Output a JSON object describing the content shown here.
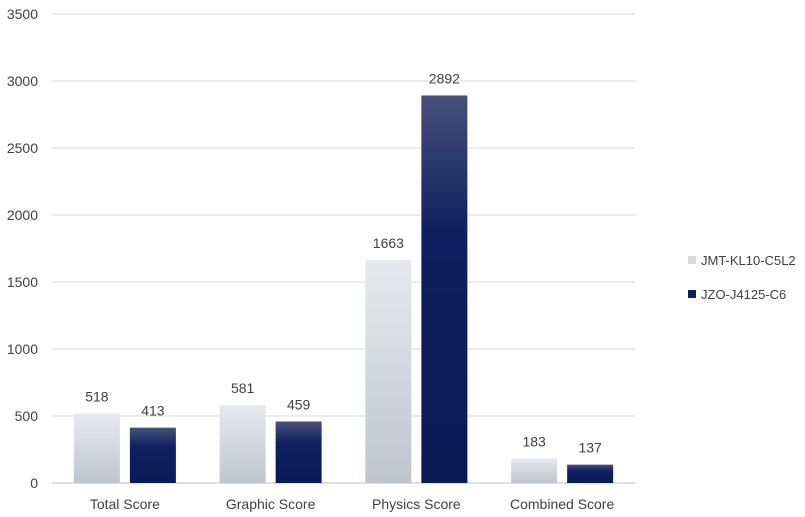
{
  "chart_data": {
    "type": "bar",
    "categories": [
      "Total Score",
      "Graphic Score",
      "Physics Score",
      "Combined Score"
    ],
    "series": [
      {
        "name": "JMT-KL10-C5L2",
        "values": [
          518,
          581,
          1663,
          183
        ],
        "color": "#d6dbe3"
      },
      {
        "name": "JZO-J4125-C6",
        "values": [
          413,
          459,
          2892,
          137
        ],
        "color": "#0d1f5c"
      }
    ],
    "ylim": [
      0,
      3500
    ],
    "yticks": [
      0,
      500,
      1000,
      1500,
      2000,
      2500,
      3000,
      3500
    ],
    "grid": true,
    "legend_position": "right"
  }
}
